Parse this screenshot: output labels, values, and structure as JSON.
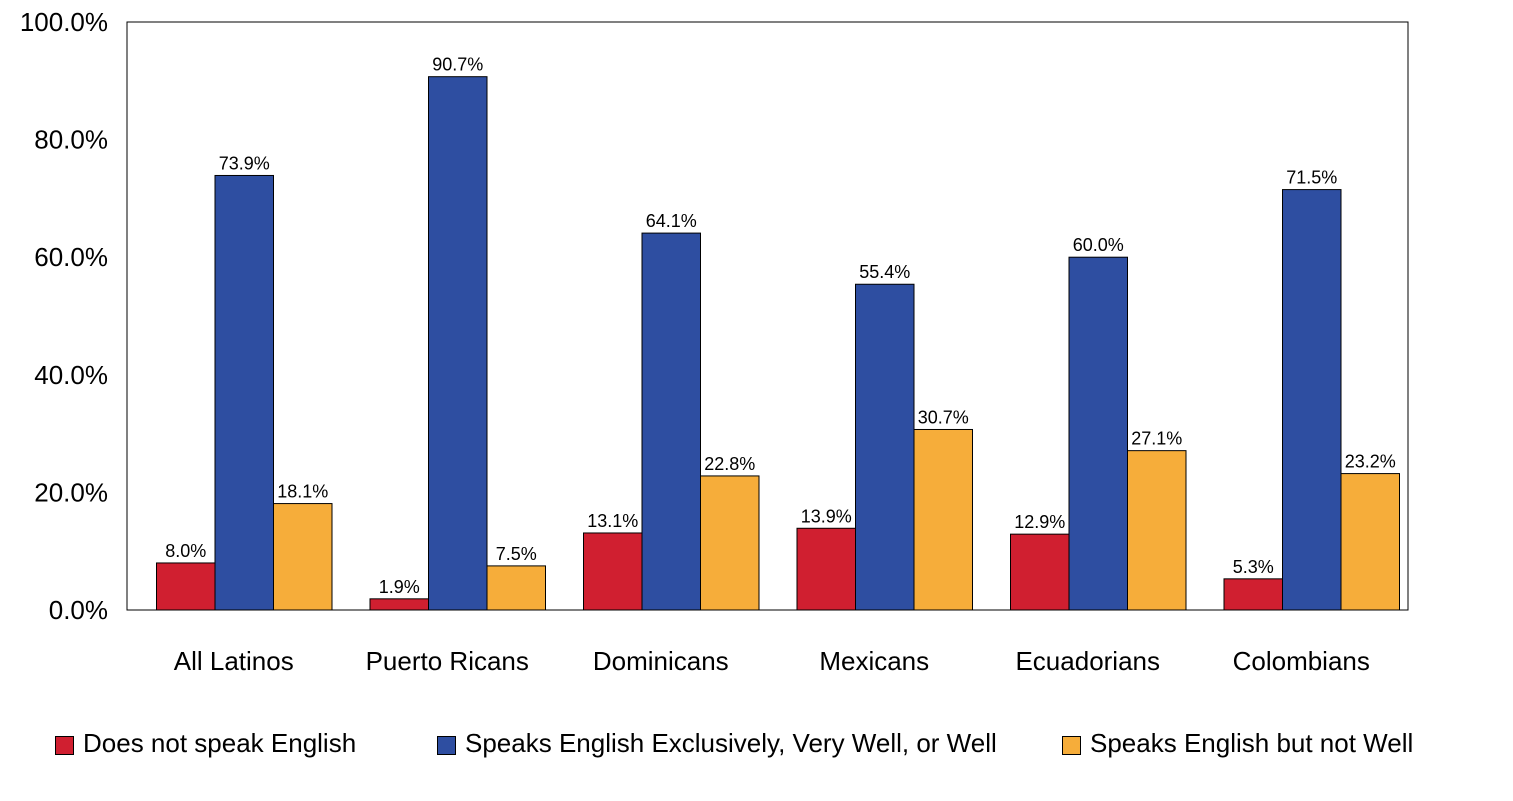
{
  "chart_data": {
    "type": "bar",
    "categories": [
      "All Latinos",
      "Puerto Ricans",
      "Dominicans",
      "Mexicans",
      "Ecuadorians",
      "Colombians"
    ],
    "series": [
      {
        "name": "Does not speak English",
        "color": "#d01f30",
        "values": [
          8.0,
          1.9,
          13.1,
          13.9,
          12.9,
          5.3
        ],
        "labels": [
          "8.0%",
          "1.9%",
          "13.1%",
          "13.9%",
          "12.9%",
          "5.3%"
        ]
      },
      {
        "name": "Speaks English Exclusively, Very Well, or Well",
        "color": "#2e4ea1",
        "values": [
          73.9,
          90.7,
          64.1,
          55.4,
          60.0,
          71.5
        ],
        "labels": [
          "73.9%",
          "90.7%",
          "64.1%",
          "55.4%",
          "60.0%",
          "71.5%"
        ]
      },
      {
        "name": "Speaks English but not Well",
        "color": "#f6ad3a",
        "values": [
          18.1,
          7.5,
          22.8,
          30.7,
          27.1,
          23.2
        ],
        "labels": [
          "18.1%",
          "7.5%",
          "22.8%",
          "30.7%",
          "27.1%",
          "23.2%"
        ]
      }
    ],
    "ylim": [
      0,
      100
    ],
    "yticks": [
      0,
      20,
      40,
      60,
      80,
      100
    ],
    "ytick_labels": [
      "0.0%",
      "20.0%",
      "40.0%",
      "60.0%",
      "80.0%",
      "100.0%"
    ],
    "grid": false,
    "legend_position": "bottom"
  }
}
